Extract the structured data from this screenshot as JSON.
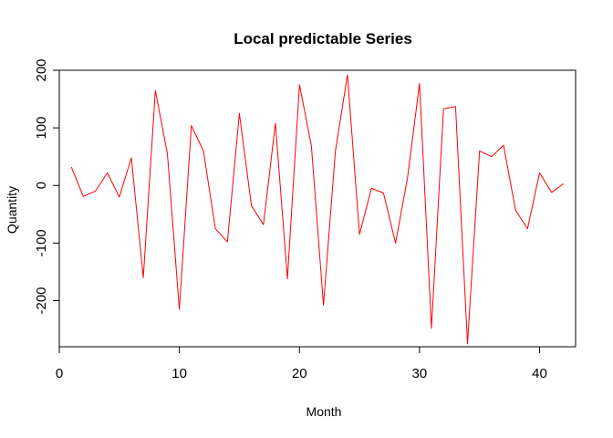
{
  "chart_data": {
    "type": "line",
    "title": "Local predictable Series",
    "xlabel": "Month",
    "ylabel": "Quantity",
    "xlim": [
      0,
      43
    ],
    "ylim": [
      -280,
      200
    ],
    "x_ticks": [
      0,
      10,
      20,
      30,
      40
    ],
    "y_ticks": [
      -200,
      -100,
      0,
      100,
      200
    ],
    "grid": false,
    "line_color": "#ff0000",
    "series": [
      {
        "x": [
          1,
          2,
          3,
          4,
          5,
          6,
          7,
          8,
          9,
          10,
          11,
          12,
          13,
          14,
          15,
          16,
          17,
          18,
          19,
          20,
          21,
          22,
          23,
          24,
          25,
          26,
          27,
          28,
          29,
          30,
          31,
          32,
          33,
          34,
          35,
          36,
          37,
          38,
          39,
          40,
          41,
          42
        ],
        "values": [
          32,
          -19,
          -10,
          22,
          -20,
          48,
          -160,
          165,
          55,
          -215,
          104,
          60,
          -75,
          -98,
          125,
          -35,
          -68,
          108,
          -162,
          175,
          68,
          -208,
          60,
          192,
          -85,
          -5,
          -13,
          -100,
          13,
          177,
          -248,
          133,
          137,
          -275,
          60,
          50,
          70,
          -43,
          -75,
          22,
          -12,
          3
        ]
      }
    ]
  }
}
